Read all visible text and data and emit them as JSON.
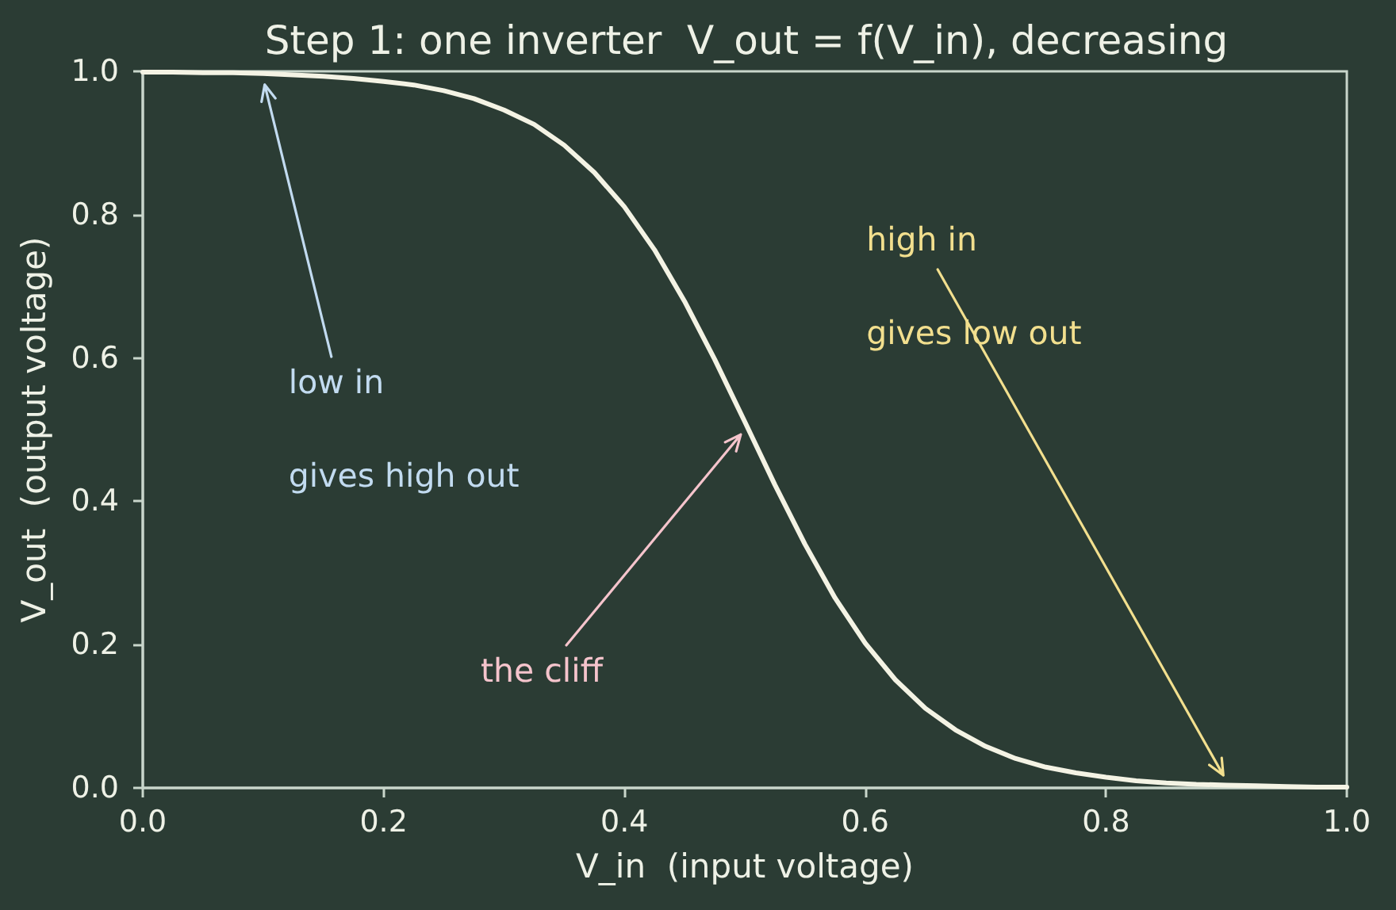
{
  "chart_data": {
    "type": "line",
    "title": "Step 1: one inverter  V_out = f(V_in), decreasing",
    "xlabel": "V_in  (input voltage)",
    "ylabel": "V_out  (output voltage)",
    "x": [
      0,
      0.025,
      0.05,
      0.075,
      0.1,
      0.125,
      0.15,
      0.175,
      0.2,
      0.225,
      0.25,
      0.275,
      0.3,
      0.325,
      0.35,
      0.375,
      0.4,
      0.425,
      0.45,
      0.475,
      0.5,
      0.525,
      0.55,
      0.575,
      0.6,
      0.625,
      0.65,
      0.675,
      0.7,
      0.725,
      0.75,
      0.775,
      0.8,
      0.825,
      0.85,
      0.875,
      0.9,
      0.925,
      0.95,
      0.975,
      1.0
    ],
    "series": [
      {
        "color": "#f4f3e4",
        "values": [
          0.999,
          0.999,
          0.998,
          0.998,
          0.997,
          0.995,
          0.993,
          0.99,
          0.986,
          0.981,
          0.973,
          0.962,
          0.946,
          0.926,
          0.897,
          0.859,
          0.811,
          0.751,
          0.679,
          0.598,
          0.511,
          0.423,
          0.34,
          0.265,
          0.202,
          0.151,
          0.111,
          0.081,
          0.058,
          0.041,
          0.029,
          0.021,
          0.015,
          0.01,
          0.007,
          0.005,
          0.004,
          0.003,
          0.002,
          0.001,
          0.001
        ]
      }
    ],
    "xlim": [
      0,
      1
    ],
    "ylim": [
      0,
      1
    ],
    "xticks": [
      {
        "value": 0,
        "label": "0.0"
      },
      0.2,
      0.4,
      0.6,
      0.8,
      {
        "value": 1,
        "label": "1.0"
      }
    ],
    "yticks": [
      {
        "value": 0,
        "label": "0.0"
      },
      0.2,
      0.4,
      0.6,
      0.8,
      {
        "value": 1,
        "label": "1.0"
      }
    ],
    "annotations": [
      {
        "text": "low in",
        "x": 0.1,
        "y": 0.99
      },
      "gives high out",
      {
        "text": "the cliff",
        "x": 0.5,
        "y": 0.5
      },
      {
        "text": "high in",
        "x": 0.9,
        "y": 0.01
      },
      "gives low out"
    ]
  }
}
